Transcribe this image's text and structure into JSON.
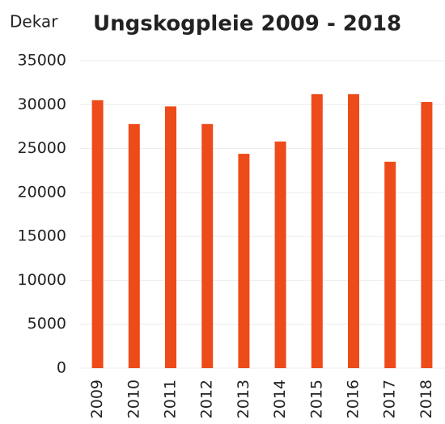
{
  "chart_data": {
    "type": "bar",
    "title": "Ungskogpleie 2009 - 2018",
    "y_label": "Dekar",
    "categories": [
      "2009",
      "2010",
      "2011",
      "2012",
      "2013",
      "2014",
      "2015",
      "2016",
      "2017",
      "2018"
    ],
    "values": [
      30500,
      27800,
      29800,
      27800,
      24400,
      25800,
      31200,
      31200,
      23500,
      30300
    ],
    "color": "#ee4b1a",
    "ylim": [
      0,
      35000
    ],
    "yticks": [
      0,
      5000,
      10000,
      15000,
      20000,
      25000,
      30000,
      35000
    ],
    "grid": true
  }
}
